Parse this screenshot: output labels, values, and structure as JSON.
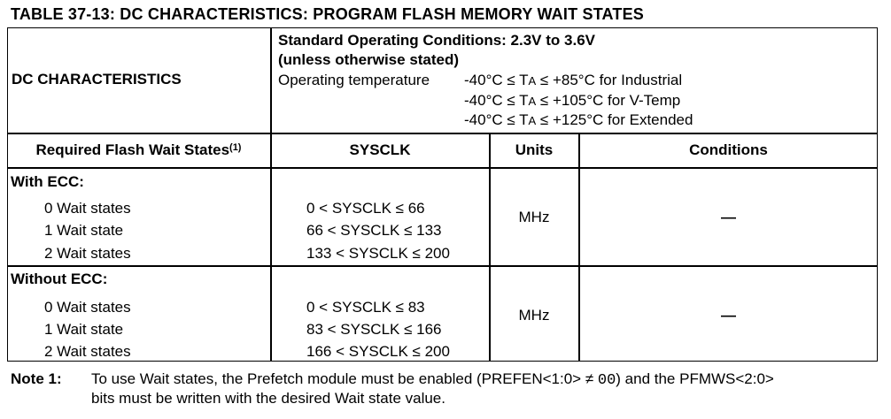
{
  "title": "TABLE 37-13:   DC CHARACTERISTICS: PROGRAM FLASH MEMORY WAIT STATES",
  "header": {
    "dc_label": "DC CHARACTERISTICS",
    "cond_line1": "Standard Operating Conditions: 2.3V to 3.6V",
    "cond_line2": "(unless otherwise stated)",
    "op_temp_label": "Operating temperature",
    "temp_ranges": [
      {
        "pre": "-40°C ≤ T",
        "sub": "A",
        "post": " ≤ +85°C for Industrial"
      },
      {
        "pre": "-40°C ≤ T",
        "sub": "A",
        "post": " ≤ +105°C for V-Temp"
      },
      {
        "pre": "-40°C ≤ T",
        "sub": "A",
        "post": " ≤ +125°C for Extended"
      }
    ]
  },
  "columns": {
    "col1": "Required Flash Wait States",
    "col1_note": "(1)",
    "col2": "SYSCLK",
    "col3": "Units",
    "col4": "Conditions"
  },
  "groups": [
    {
      "label": "With ECC:",
      "rows": [
        {
          "state": "0 Wait states",
          "range": "0 < SYSCLK ≤ 66"
        },
        {
          "state": "1 Wait state",
          "range": "66 < SYSCLK ≤ 133"
        },
        {
          "state": "2 Wait states",
          "range": "133 < SYSCLK ≤ 200"
        }
      ],
      "units": "MHz",
      "conditions": "—"
    },
    {
      "label": "Without ECC:",
      "rows": [
        {
          "state": "0 Wait states",
          "range": "0 < SYSCLK ≤ 83"
        },
        {
          "state": "1 Wait state",
          "range": "83 < SYSCLK ≤ 166"
        },
        {
          "state": "2 Wait states",
          "range": "166 < SYSCLK ≤ 200"
        }
      ],
      "units": "MHz",
      "conditions": "—"
    }
  ],
  "note": {
    "label": "Note 1:",
    "line1_a": "To use Wait states, the Prefetch module must be enabled (PREFEN<1:0> ≠ ",
    "line1_code": "00",
    "line1_b": ") and the PFMWS<2:0>",
    "line2": "bits must be written with the desired Wait state value."
  }
}
